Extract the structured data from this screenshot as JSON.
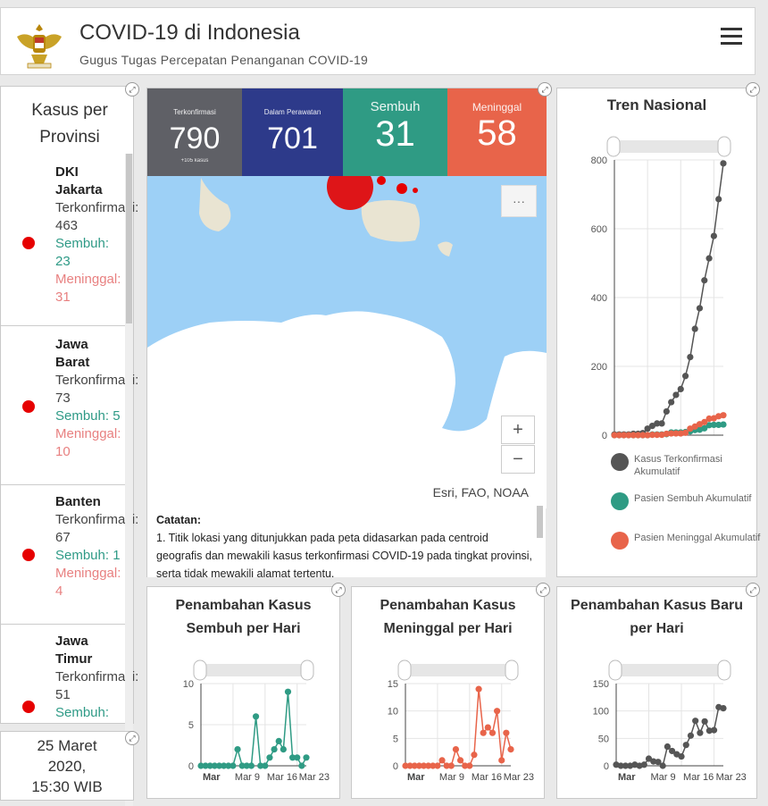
{
  "header": {
    "title": "COVID-19 di Indonesia",
    "subtitle": "Gugus Tugas Percepatan Penanganan COVID-19"
  },
  "provinces": {
    "title": "Kasus per Provinsi",
    "items": [
      {
        "name": "DKI Jakarta",
        "conf": "Terkonfirmasi: 463",
        "recov": "Sembuh: 23",
        "death": "Meninggal: 31"
      },
      {
        "name": "Jawa Barat",
        "conf": "Terkonfirmasi: 73",
        "recov": "Sembuh: 5",
        "death": "Meninggal: 10"
      },
      {
        "name": "Banten",
        "conf": "Terkonfirmasi: 67",
        "recov": "Sembuh: 1",
        "death": "Meninggal: 4"
      },
      {
        "name": "Jawa Timur",
        "conf": "Terkonfirmasi: 51",
        "recov": "Sembuh:",
        "death": ""
      }
    ]
  },
  "updated": {
    "date": "25 Maret",
    "year": "2020,",
    "time": "15:30 WIB"
  },
  "stats": [
    {
      "label": "Terkonfirmasi",
      "value": "790",
      "sub": "+105 kasus",
      "color": "#5f6066"
    },
    {
      "label": "Dalam Perawatan",
      "value": "701",
      "sub": "",
      "color": "#2d3a8a"
    },
    {
      "label": "Sembuh",
      "value": "31",
      "sub": "",
      "color": "#2f9b84"
    },
    {
      "label": "Meninggal",
      "value": "58",
      "sub": "",
      "color": "#e8644a"
    }
  ],
  "map": {
    "attribution": "Esri, FAO, NOAA",
    "zoom_in": "+",
    "zoom_out": "−",
    "more": "···",
    "notes_title": "Catatan:",
    "notes_text": "1. Titik lokasi yang ditunjukkan pada peta didasarkan pada centroid geografis dan mewakili kasus terkonfirmasi COVID-19 pada tingkat provinsi, serta tidak mewakili alamat tertentu."
  },
  "trend": {
    "title": "Tren Nasional",
    "legend": [
      "Kasus Terkonfirmasi Akumulatif",
      "Pasien Sembuh Akumulatif",
      "Pasien Meninggal Akumulatif"
    ]
  },
  "small_charts": {
    "recovered_title": "Penambahan Kasus Sembuh per Hari",
    "deaths_title": "Penambahan Kasus Meninggal per Hari",
    "new_title": "Penambahan Kasus Baru per Hari"
  },
  "chart_data": [
    {
      "type": "line",
      "title": "Tren Nasional",
      "ylim": [
        0,
        800
      ],
      "yticks": [
        0,
        200,
        400,
        600,
        800
      ],
      "series": [
        {
          "name": "Kasus Terkonfirmasi Akumulatif",
          "color": "#555555",
          "values": [
            2,
            2,
            2,
            2,
            4,
            4,
            6,
            19,
            27,
            34,
            34,
            69,
            96,
            117,
            134,
            172,
            227,
            309,
            369,
            450,
            514,
            579,
            686,
            790
          ]
        },
        {
          "name": "Pasien Sembuh Akumulatif",
          "color": "#2f9b84",
          "values": [
            0,
            0,
            0,
            0,
            0,
            0,
            0,
            0,
            2,
            2,
            2,
            3,
            8,
            8,
            8,
            9,
            11,
            15,
            16,
            20,
            29,
            30,
            30,
            31
          ]
        },
        {
          "name": "Pasien Meninggal Akumulatif",
          "color": "#e8644a",
          "values": [
            0,
            0,
            0,
            0,
            0,
            0,
            0,
            0,
            1,
            1,
            1,
            4,
            5,
            5,
            5,
            7,
            19,
            25,
            32,
            38,
            48,
            49,
            55,
            58
          ]
        }
      ]
    },
    {
      "type": "line",
      "title": "Penambahan Kasus Sembuh per Hari",
      "xticks": [
        "Mar",
        "Mar 9",
        "Mar 16",
        "Mar 23"
      ],
      "ylim": [
        0,
        10
      ],
      "yticks": [
        0,
        5,
        10
      ],
      "series": [
        {
          "name": "Sembuh",
          "color": "#2f9b84",
          "values": [
            0,
            0,
            0,
            0,
            0,
            0,
            0,
            0,
            2,
            0,
            0,
            0,
            6,
            0,
            0,
            1,
            2,
            3,
            2,
            9,
            1,
            1,
            0,
            1
          ]
        }
      ]
    },
    {
      "type": "line",
      "title": "Penambahan Kasus Meninggal per Hari",
      "xticks": [
        "Mar",
        "Mar 9",
        "Mar 16",
        "Mar 23"
      ],
      "ylim": [
        0,
        15
      ],
      "yticks": [
        0,
        5,
        10,
        15
      ],
      "series": [
        {
          "name": "Meninggal",
          "color": "#e8644a",
          "values": [
            0,
            0,
            0,
            0,
            0,
            0,
            0,
            0,
            1,
            0,
            0,
            3,
            1,
            0,
            0,
            2,
            14,
            6,
            7,
            6,
            10,
            1,
            6,
            3
          ]
        }
      ]
    },
    {
      "type": "line",
      "title": "Penambahan Kasus Baru per Hari",
      "xticks": [
        "Mar",
        "Mar 9",
        "Mar 16",
        "Mar 23"
      ],
      "ylim": [
        0,
        150
      ],
      "yticks": [
        0,
        50,
        100,
        150
      ],
      "series": [
        {
          "name": "Kasus Baru",
          "color": "#555555",
          "values": [
            2,
            0,
            0,
            0,
            2,
            0,
            2,
            13,
            8,
            7,
            0,
            35,
            27,
            21,
            17,
            38,
            55,
            82,
            60,
            81,
            64,
            65,
            107,
            105
          ]
        }
      ]
    }
  ]
}
